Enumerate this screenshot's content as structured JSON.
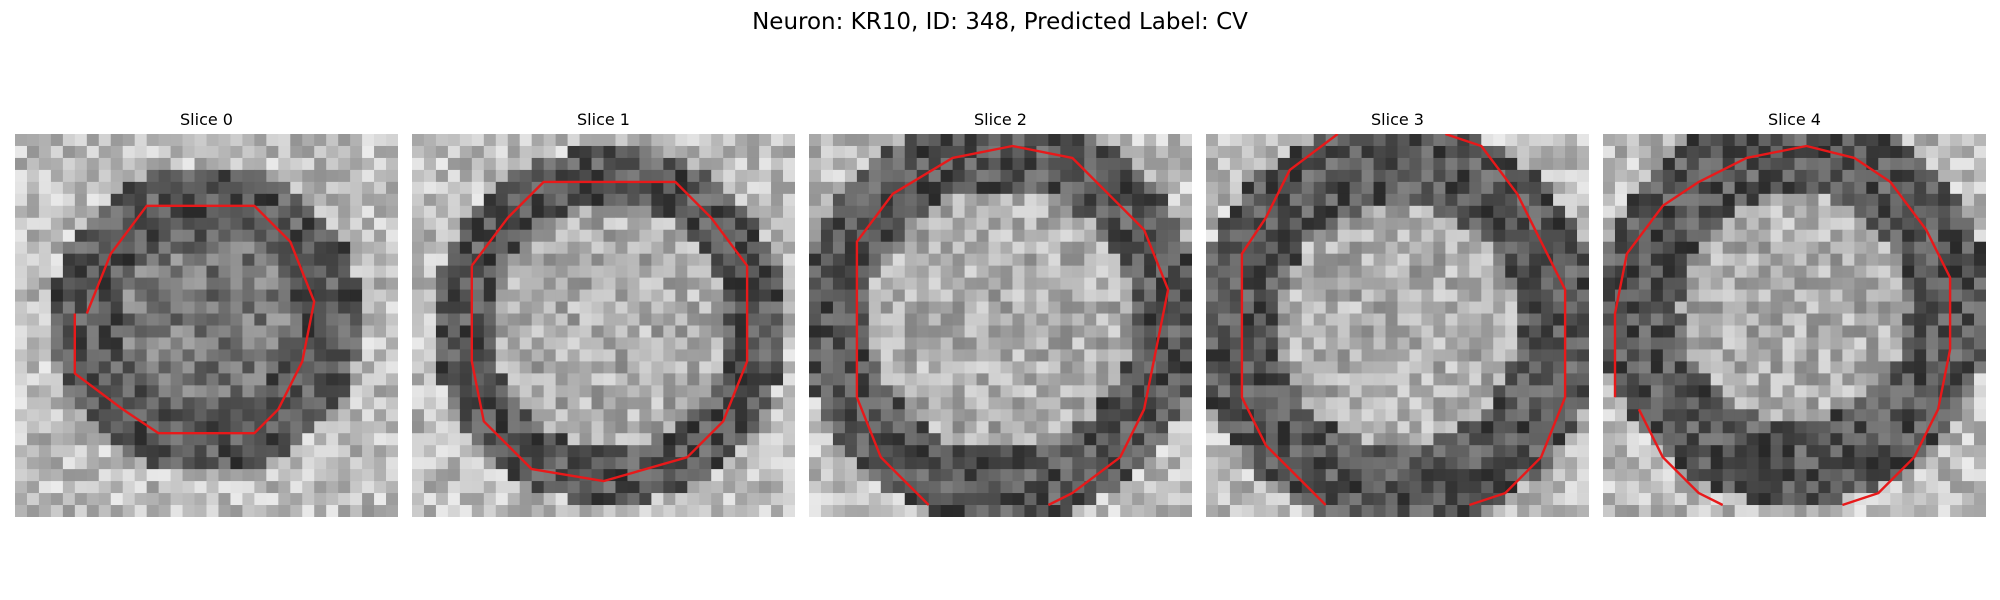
{
  "figure": {
    "title": "Neuron: KR10, ID: 348, Predicted Label: CV"
  },
  "colors": {
    "contour": "#e8191a",
    "background": "#ffffff"
  },
  "panels": [
    {
      "title": "Slice 0",
      "seed": 11
    },
    {
      "title": "Slice 1",
      "seed": 23
    },
    {
      "title": "Slice 2",
      "seed": 37
    },
    {
      "title": "Slice 3",
      "seed": 51
    },
    {
      "title": "Slice 4",
      "seed": 67
    }
  ]
}
